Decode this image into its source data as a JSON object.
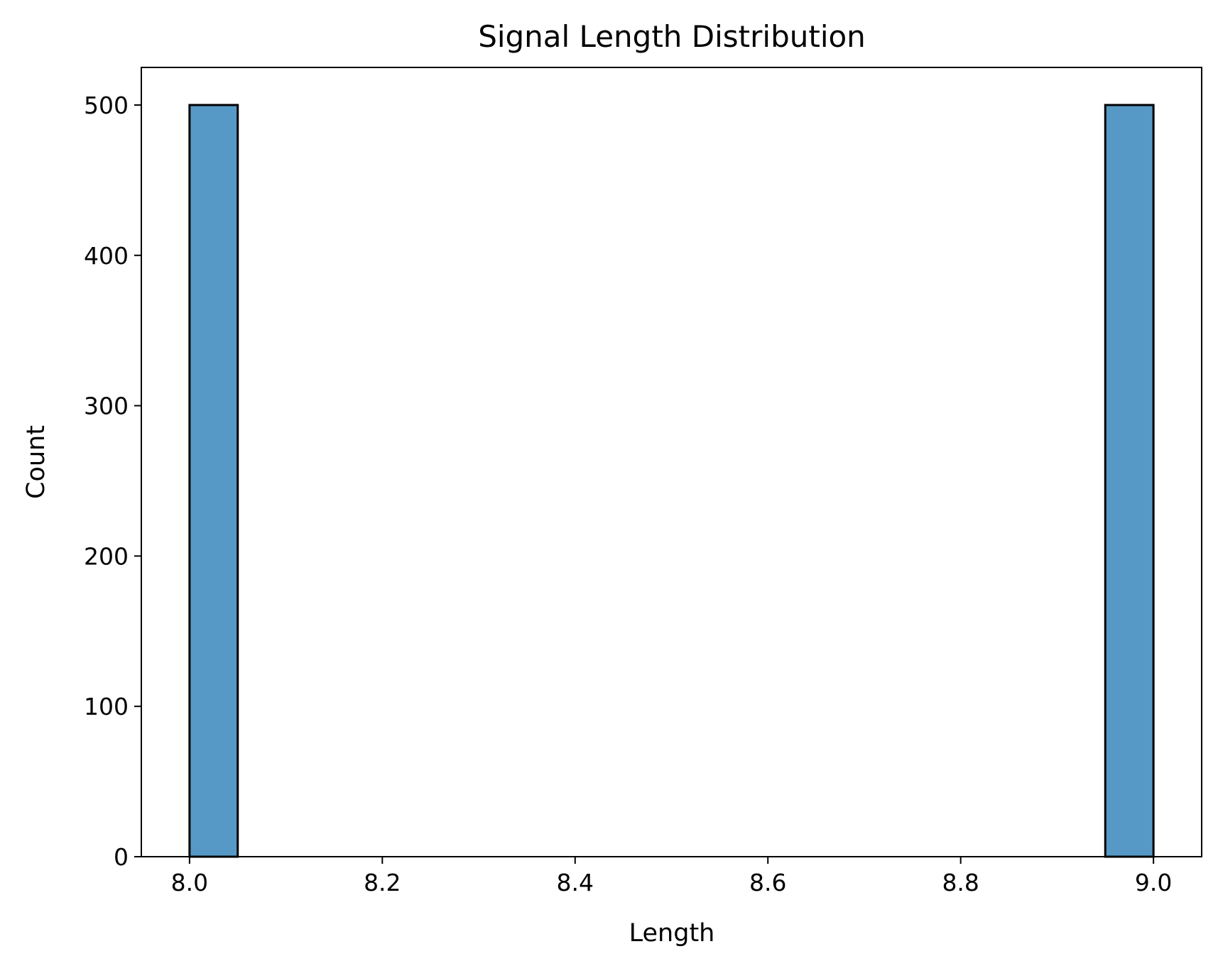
{
  "chart_data": {
    "type": "bar",
    "title": "Signal Length Distribution",
    "xlabel": "Length",
    "ylabel": "Count",
    "xlim": [
      7.95,
      9.05
    ],
    "ylim": [
      0,
      525
    ],
    "x_ticks": [
      8.0,
      8.2,
      8.4,
      8.6,
      8.8,
      9.0
    ],
    "x_tick_labels": [
      "8.0",
      "8.2",
      "8.4",
      "8.6",
      "8.8",
      "9.0"
    ],
    "y_ticks": [
      0,
      100,
      200,
      300,
      400,
      500
    ],
    "y_tick_labels": [
      "0",
      "100",
      "200",
      "300",
      "400",
      "500"
    ],
    "bins": [
      {
        "start": 8.0,
        "end": 8.05,
        "count": 500
      },
      {
        "start": 8.95,
        "end": 9.0,
        "count": 500
      }
    ],
    "bar_color": "#5799c6",
    "edge_color": "#000000",
    "grid": false
  }
}
